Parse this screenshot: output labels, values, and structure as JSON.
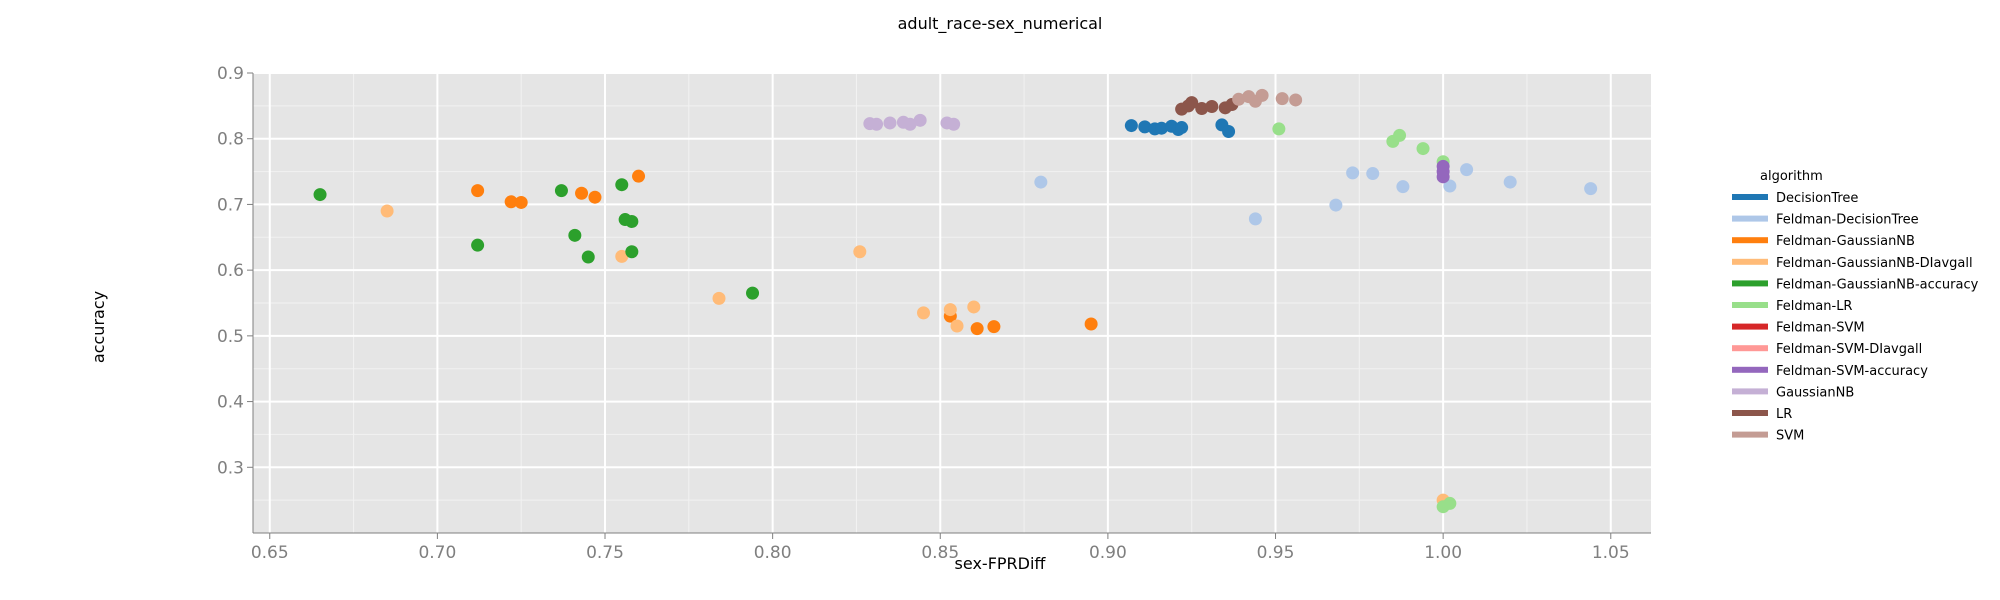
{
  "chart_data": {
    "type": "scatter",
    "title": "adult_race-sex_numerical",
    "xlabel": "sex-FPRDiff",
    "ylabel": "accuracy",
    "xlim": [
      0.645,
      1.062
    ],
    "ylim": [
      0.2,
      0.9
    ],
    "xticks": [
      "0.65",
      "0.70",
      "0.75",
      "0.80",
      "0.85",
      "0.90",
      "0.95",
      "1.00",
      "1.05"
    ],
    "yticks": [
      "0.3",
      "0.4",
      "0.5",
      "0.6",
      "0.7",
      "0.8",
      "0.9"
    ],
    "grid": true,
    "legend": {
      "title": "algorithm",
      "placement": "right"
    },
    "series": [
      {
        "name": "DecisionTree",
        "color": "#1f77b4",
        "points": [
          [
            0.907,
            0.82
          ],
          [
            0.911,
            0.818
          ],
          [
            0.914,
            0.815
          ],
          [
            0.916,
            0.816
          ],
          [
            0.919,
            0.819
          ],
          [
            0.921,
            0.814
          ],
          [
            0.922,
            0.817
          ],
          [
            0.934,
            0.821
          ],
          [
            0.936,
            0.811
          ]
        ]
      },
      {
        "name": "Feldman-DecisionTree",
        "color": "#aec7e8",
        "points": [
          [
            0.88,
            0.734
          ],
          [
            0.944,
            0.678
          ],
          [
            0.968,
            0.699
          ],
          [
            0.973,
            0.748
          ],
          [
            0.979,
            0.747
          ],
          [
            0.988,
            0.727
          ],
          [
            1.002,
            0.728
          ],
          [
            1.007,
            0.753
          ],
          [
            1.02,
            0.734
          ],
          [
            1.044,
            0.724
          ]
        ]
      },
      {
        "name": "Feldman-GaussianNB",
        "color": "#ff7f0e",
        "points": [
          [
            0.712,
            0.721
          ],
          [
            0.722,
            0.704
          ],
          [
            0.725,
            0.703
          ],
          [
            0.743,
            0.717
          ],
          [
            0.747,
            0.711
          ],
          [
            0.76,
            0.743
          ],
          [
            0.853,
            0.53
          ],
          [
            0.861,
            0.511
          ],
          [
            0.866,
            0.514
          ],
          [
            0.895,
            0.518
          ]
        ]
      },
      {
        "name": "Feldman-GaussianNB-DIavgall",
        "color": "#ffbb78",
        "points": [
          [
            0.685,
            0.69
          ],
          [
            0.755,
            0.621
          ],
          [
            0.784,
            0.557
          ],
          [
            0.826,
            0.628
          ],
          [
            0.845,
            0.535
          ],
          [
            0.853,
            0.54
          ],
          [
            0.855,
            0.515
          ],
          [
            0.86,
            0.544
          ],
          [
            1.0,
            0.25
          ]
        ]
      },
      {
        "name": "Feldman-GaussianNB-accuracy",
        "color": "#2ca02c",
        "points": [
          [
            0.665,
            0.715
          ],
          [
            0.712,
            0.638
          ],
          [
            0.737,
            0.721
          ],
          [
            0.741,
            0.653
          ],
          [
            0.745,
            0.62
          ],
          [
            0.755,
            0.73
          ],
          [
            0.756,
            0.677
          ],
          [
            0.758,
            0.674
          ],
          [
            0.758,
            0.628
          ],
          [
            0.794,
            0.565
          ]
        ]
      },
      {
        "name": "Feldman-LR",
        "color": "#98df8a",
        "points": [
          [
            0.951,
            0.815
          ],
          [
            0.985,
            0.796
          ],
          [
            0.987,
            0.805
          ],
          [
            0.994,
            0.785
          ],
          [
            1.0,
            0.765
          ],
          [
            1.0,
            0.24
          ],
          [
            1.002,
            0.245
          ]
        ]
      },
      {
        "name": "Feldman-SVM",
        "color": "#d62728",
        "points": []
      },
      {
        "name": "Feldman-SVM-DIavgall",
        "color": "#ff9896",
        "points": []
      },
      {
        "name": "Feldman-SVM-accuracy",
        "color": "#9467bd",
        "points": [
          [
            1.0,
            0.742
          ],
          [
            1.0,
            0.75
          ],
          [
            1.0,
            0.758
          ]
        ]
      },
      {
        "name": "GaussianNB",
        "color": "#c5b0d5",
        "points": [
          [
            0.829,
            0.823
          ],
          [
            0.831,
            0.822
          ],
          [
            0.835,
            0.824
          ],
          [
            0.839,
            0.825
          ],
          [
            0.841,
            0.822
          ],
          [
            0.844,
            0.828
          ],
          [
            0.852,
            0.824
          ],
          [
            0.854,
            0.822
          ]
        ]
      },
      {
        "name": "LR",
        "color": "#8c564b",
        "points": [
          [
            0.922,
            0.845
          ],
          [
            0.924,
            0.85
          ],
          [
            0.925,
            0.855
          ],
          [
            0.928,
            0.846
          ],
          [
            0.931,
            0.849
          ],
          [
            0.935,
            0.847
          ],
          [
            0.937,
            0.852
          ]
        ]
      },
      {
        "name": "SVM",
        "color": "#c49c94",
        "points": [
          [
            0.939,
            0.86
          ],
          [
            0.942,
            0.864
          ],
          [
            0.944,
            0.857
          ],
          [
            0.946,
            0.866
          ],
          [
            0.952,
            0.861
          ],
          [
            0.956,
            0.859
          ]
        ]
      }
    ]
  }
}
